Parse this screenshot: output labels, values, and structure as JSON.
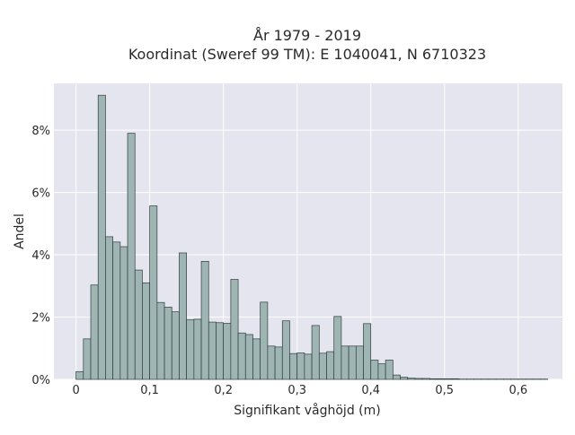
{
  "chart_data": {
    "type": "bar",
    "title_line1": "År 1979 - 2019",
    "title_line2": "Koordinat (Sweref 99 TM): E 1040041, N 6710323",
    "xlabel": "Signifikant våghöjd (m)",
    "ylabel": "Andel",
    "bin_width": 0.01,
    "xlim": [
      -0.03,
      0.66
    ],
    "ylim": [
      0,
      0.095
    ],
    "x_ticks": [
      {
        "value": 0,
        "label": "0"
      },
      {
        "value": 0.1,
        "label": "0,1"
      },
      {
        "value": 0.2,
        "label": "0,2"
      },
      {
        "value": 0.3,
        "label": "0,3"
      },
      {
        "value": 0.4,
        "label": "0,4"
      },
      {
        "value": 0.5,
        "label": "0,5"
      },
      {
        "value": 0.6,
        "label": "0,6"
      }
    ],
    "y_ticks": [
      {
        "value": 0,
        "label": "0%"
      },
      {
        "value": 0.02,
        "label": "2%"
      },
      {
        "value": 0.04,
        "label": "4%"
      },
      {
        "value": 0.06,
        "label": "6%"
      },
      {
        "value": 0.08,
        "label": "8%"
      }
    ],
    "bin_starts": [
      0,
      0.01,
      0.02,
      0.03,
      0.04,
      0.05,
      0.06,
      0.07,
      0.08,
      0.09,
      0.1,
      0.11,
      0.12,
      0.13,
      0.14,
      0.15,
      0.16,
      0.17,
      0.18,
      0.19,
      0.2,
      0.21,
      0.22,
      0.23,
      0.24,
      0.25,
      0.26,
      0.27,
      0.28,
      0.29,
      0.3,
      0.31,
      0.32,
      0.33,
      0.34,
      0.35,
      0.36,
      0.37,
      0.38,
      0.39,
      0.4,
      0.41,
      0.42,
      0.43,
      0.44,
      0.45,
      0.46,
      0.47,
      0.48,
      0.49,
      0.5,
      0.51,
      0.52,
      0.53,
      0.54,
      0.55,
      0.56,
      0.57,
      0.58,
      0.59,
      0.6,
      0.61,
      0.62,
      0.63
    ],
    "values": [
      0.0025,
      0.013,
      0.0303,
      0.0912,
      0.0458,
      0.0441,
      0.0426,
      0.079,
      0.0351,
      0.031,
      0.0557,
      0.0247,
      0.0232,
      0.0217,
      0.0406,
      0.0191,
      0.0193,
      0.0379,
      0.0184,
      0.0182,
      0.018,
      0.0321,
      0.0149,
      0.0144,
      0.013,
      0.0248,
      0.0107,
      0.0104,
      0.0188,
      0.0083,
      0.0085,
      0.0081,
      0.0173,
      0.0084,
      0.0089,
      0.0202,
      0.0107,
      0.0107,
      0.0107,
      0.0179,
      0.0062,
      0.005,
      0.0062,
      0.0014,
      0.0007,
      0.0004,
      0.0003,
      0.0003,
      0.0002,
      0.0002,
      0.0002,
      0.0002,
      0.0001,
      0.0001,
      0.0001,
      0.0001,
      0.0001,
      0.0001,
      0.0001,
      0.0001,
      0.0001,
      0.0001,
      0.0001,
      0.0001
    ],
    "colors": {
      "plot_bg": "#e5e5ef",
      "grid": "#ffffff",
      "bar_fill": "#9fb5b3",
      "bar_stroke": "#2f3e3d"
    },
    "grid": true
  }
}
